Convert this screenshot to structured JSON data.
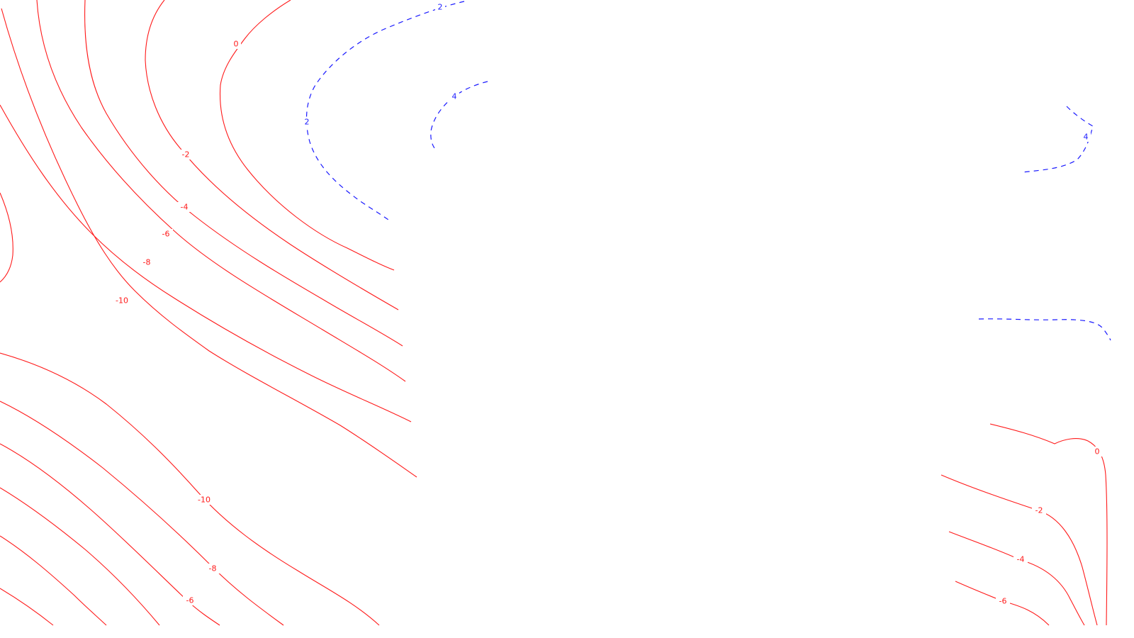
{
  "map": {
    "colors": {
      "negative_contour": "#ff1a1a",
      "positive_contour": "#1a1aff",
      "background": "#ffffff"
    },
    "contour_labels": {
      "n0_top": "0",
      "n2_top": "-2",
      "n4_top": "-4",
      "n6_top": "-6",
      "n8_top": "-8",
      "n10_top": "-10",
      "n10_bottom": "-10",
      "n8_bottom": "-8",
      "n6_bottom": "-6",
      "p2_top": "2",
      "p2_left": "2",
      "p4_top": "4",
      "p4_right": "4",
      "n0_right": "0",
      "n2_right": "-2",
      "n4_right": "-4",
      "n6_right": "-6"
    }
  }
}
